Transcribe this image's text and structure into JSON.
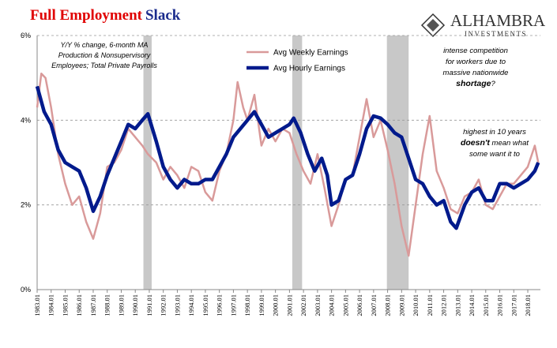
{
  "chart_data": {
    "type": "line",
    "title_parts": [
      "Full Employment",
      "Slack"
    ],
    "note": [
      "Y/Y % change, 6-month MA",
      "Production & Nonsupervisory",
      "Employees; Total Private Payrolls"
    ],
    "annotations": [
      [
        [
          {
            "text": "intense competition",
            "bold": false
          }
        ],
        [
          {
            "text": "for workers due to",
            "bold": false
          }
        ],
        [
          {
            "text": "massive nationwide",
            "bold": false
          }
        ],
        [
          {
            "text": "shortage",
            "bold": true
          },
          {
            "text": "?",
            "bold": false
          }
        ]
      ],
      [
        [
          {
            "text": "highest in 10 years",
            "bold": false
          }
        ],
        [
          {
            "text": "doesn't",
            "bold": true
          },
          {
            "text": " mean what",
            "bold": false
          }
        ],
        [
          {
            "text": "some want it to",
            "bold": false
          }
        ]
      ]
    ],
    "logo": [
      "ALHAMBRA",
      "INVESTMENTS"
    ],
    "legend": "top-center",
    "grid": true,
    "xlim": [
      1983,
      2018.9
    ],
    "ylim": [
      0,
      6
    ],
    "yticks": [
      {
        "value": 0,
        "label": "0%"
      },
      {
        "value": 2,
        "label": "2%"
      },
      {
        "value": 4,
        "label": "4%"
      },
      {
        "value": 6,
        "label": "6%"
      }
    ],
    "xticks": [
      {
        "value": 1983,
        "label": "1983.01"
      },
      {
        "value": 1984,
        "label": "1984.01"
      },
      {
        "value": 1985,
        "label": "1985.01"
      },
      {
        "value": 1986,
        "label": "1986.01"
      },
      {
        "value": 1987,
        "label": "1987.01"
      },
      {
        "value": 1988,
        "label": "1988.01"
      },
      {
        "value": 1989,
        "label": "1989.01"
      },
      {
        "value": 1990,
        "label": "1990.01"
      },
      {
        "value": 1991,
        "label": "1991.01"
      },
      {
        "value": 1992,
        "label": "1992.01"
      },
      {
        "value": 1993,
        "label": "1993.01"
      },
      {
        "value": 1994,
        "label": "1994.01"
      },
      {
        "value": 1995,
        "label": "1995.01"
      },
      {
        "value": 1996,
        "label": "1996.01"
      },
      {
        "value": 1997,
        "label": "1997.01"
      },
      {
        "value": 1998,
        "label": "1998.01"
      },
      {
        "value": 1999,
        "label": "1999.01"
      },
      {
        "value": 2000,
        "label": "2000.01"
      },
      {
        "value": 2001,
        "label": "2001.01"
      },
      {
        "value": 2002,
        "label": "2002.01"
      },
      {
        "value": 2003,
        "label": "2003.01"
      },
      {
        "value": 2004,
        "label": "2004.01"
      },
      {
        "value": 2005,
        "label": "2005.01"
      },
      {
        "value": 2006,
        "label": "2006.01"
      },
      {
        "value": 2007,
        "label": "2007.01"
      },
      {
        "value": 2008,
        "label": "2008.01"
      },
      {
        "value": 2009,
        "label": "2009.01"
      },
      {
        "value": 2010,
        "label": "2010.01"
      },
      {
        "value": 2011,
        "label": "2011.01"
      },
      {
        "value": 2012,
        "label": "2012.01"
      },
      {
        "value": 2013,
        "label": "2013.01"
      },
      {
        "value": 2014,
        "label": "2014.01"
      },
      {
        "value": 2015,
        "label": "2015.01"
      },
      {
        "value": 2016,
        "label": "2016.01"
      },
      {
        "value": 2017,
        "label": "2017.01"
      },
      {
        "value": 2018,
        "label": "2018.01"
      }
    ],
    "recessions": [
      [
        1990.58,
        1991.17
      ],
      [
        2001.2,
        2001.9
      ],
      [
        2007.95,
        2009.5
      ]
    ],
    "recession_color": "#c8c8c8",
    "series": [
      {
        "name": "Avg Weekly Earnings",
        "color": "#d99a9a",
        "width": 2.5,
        "x": [
          1983,
          1983.3,
          1983.6,
          1984,
          1984.5,
          1985,
          1985.5,
          1986,
          1986.5,
          1987,
          1987.5,
          1988,
          1988.5,
          1989,
          1989.5,
          1990,
          1990.5,
          1990.9,
          1991.5,
          1992,
          1992.5,
          1993,
          1993.5,
          1994,
          1994.5,
          1995,
          1995.5,
          1996,
          1996.5,
          1997,
          1997.3,
          1997.7,
          1998,
          1998.5,
          1999,
          1999.5,
          2000,
          2000.5,
          2001,
          2001.5,
          2002,
          2002.5,
          2003,
          2003.5,
          2004,
          2004.5,
          2005,
          2005.5,
          2006,
          2006.5,
          2007,
          2007.5,
          2008,
          2008.5,
          2009,
          2009.5,
          2010,
          2010.5,
          2011,
          2011.5,
          2012,
          2012.5,
          2013,
          2013.5,
          2014,
          2014.5,
          2015,
          2015.5,
          2016,
          2016.5,
          2017,
          2017.5,
          2018,
          2018.5,
          2018.75
        ],
        "values": [
          4.3,
          5.1,
          5.0,
          4.3,
          3.2,
          2.5,
          2.0,
          2.2,
          1.6,
          1.2,
          1.8,
          2.9,
          3.0,
          3.3,
          3.8,
          3.6,
          3.4,
          3.2,
          3.0,
          2.6,
          2.9,
          2.7,
          2.4,
          2.9,
          2.8,
          2.3,
          2.1,
          2.8,
          3.2,
          4.0,
          4.9,
          4.3,
          4.0,
          4.6,
          3.4,
          3.8,
          3.5,
          3.8,
          3.7,
          3.2,
          2.8,
          2.5,
          3.2,
          2.4,
          1.5,
          2.0,
          2.6,
          2.7,
          3.6,
          4.5,
          3.6,
          4.0,
          3.3,
          2.5,
          1.5,
          0.8,
          2.0,
          3.2,
          4.1,
          2.8,
          2.4,
          1.9,
          1.8,
          2.2,
          2.3,
          2.6,
          2.0,
          1.9,
          2.2,
          2.5,
          2.5,
          2.7,
          2.9,
          3.4,
          3.0
        ]
      },
      {
        "name": "Avg Hourly Earnings",
        "color": "#001a8c",
        "width": 4.5,
        "x": [
          1983,
          1983.5,
          1984,
          1984.5,
          1985,
          1985.5,
          1986,
          1986.5,
          1987,
          1987.5,
          1988,
          1988.5,
          1989,
          1989.5,
          1990,
          1990.5,
          1990.9,
          1991.5,
          1992,
          1992.5,
          1993,
          1993.5,
          1994,
          1994.5,
          1995,
          1995.5,
          1996,
          1996.5,
          1997,
          1997.5,
          1998,
          1998.5,
          1999,
          1999.5,
          2000,
          2000.5,
          2001,
          2001.3,
          2001.8,
          2002.3,
          2002.8,
          2003.3,
          2003.7,
          2004,
          2004.5,
          2005,
          2005.5,
          2006,
          2006.5,
          2007,
          2007.5,
          2008,
          2008.5,
          2009,
          2009.5,
          2010,
          2010.5,
          2011,
          2011.5,
          2012,
          2012.5,
          2012.9,
          2013.5,
          2014,
          2014.5,
          2015,
          2015.5,
          2016,
          2016.5,
          2017,
          2017.5,
          2018,
          2018.5,
          2018.75
        ],
        "values": [
          4.8,
          4.2,
          3.9,
          3.3,
          3.0,
          2.9,
          2.8,
          2.4,
          1.85,
          2.2,
          2.7,
          3.1,
          3.5,
          3.9,
          3.8,
          4.0,
          4.15,
          3.5,
          2.9,
          2.6,
          2.4,
          2.6,
          2.5,
          2.5,
          2.6,
          2.6,
          2.9,
          3.2,
          3.6,
          3.8,
          4.0,
          4.2,
          3.9,
          3.6,
          3.7,
          3.8,
          3.9,
          4.05,
          3.7,
          3.2,
          2.8,
          3.1,
          2.7,
          2.0,
          2.1,
          2.6,
          2.7,
          3.2,
          3.8,
          4.1,
          4.05,
          3.9,
          3.7,
          3.6,
          3.1,
          2.6,
          2.5,
          2.2,
          2.0,
          2.1,
          1.6,
          1.45,
          2.0,
          2.3,
          2.4,
          2.1,
          2.1,
          2.5,
          2.5,
          2.4,
          2.5,
          2.6,
          2.8,
          3.0
        ]
      }
    ]
  }
}
